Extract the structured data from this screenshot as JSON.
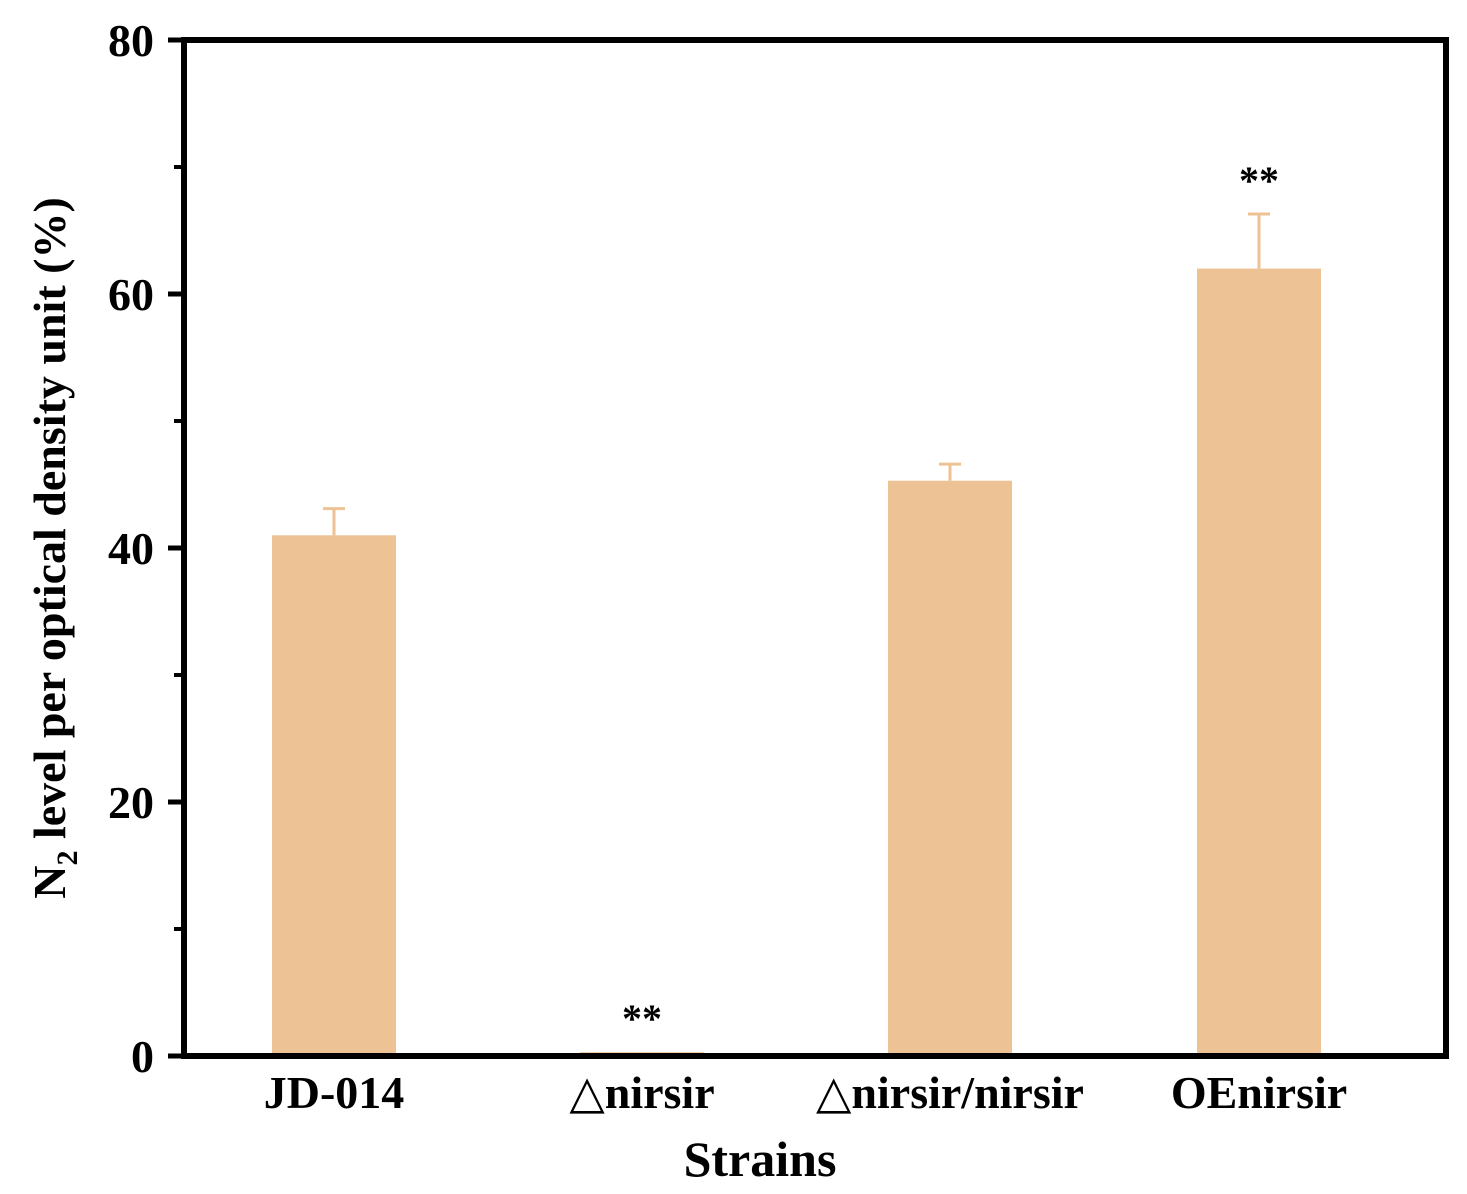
{
  "chart_data": {
    "type": "bar",
    "title": "",
    "xlabel": "Strains",
    "ylabel_main": "N",
    "ylabel_sub": "2",
    "ylabel_rest": " level per optical density unit (%)",
    "ylim": [
      0,
      80
    ],
    "yticks": [
      "0",
      "20",
      "40",
      "60",
      "80"
    ],
    "minor_yticks": [
      10,
      30,
      50,
      70
    ],
    "categories": [
      "JD-014",
      "△nirsir",
      "△nirsir/nirsir",
      "OEnirsir"
    ],
    "values": [
      41.0,
      0.3,
      45.3,
      62.0
    ],
    "errors": [
      2.1,
      0.0,
      1.3,
      4.3
    ],
    "annotations": [
      "",
      "**",
      "",
      "**"
    ],
    "bar_color": "#edc295",
    "errorbar_color": "#edc295",
    "grid": false,
    "legend": "none"
  }
}
